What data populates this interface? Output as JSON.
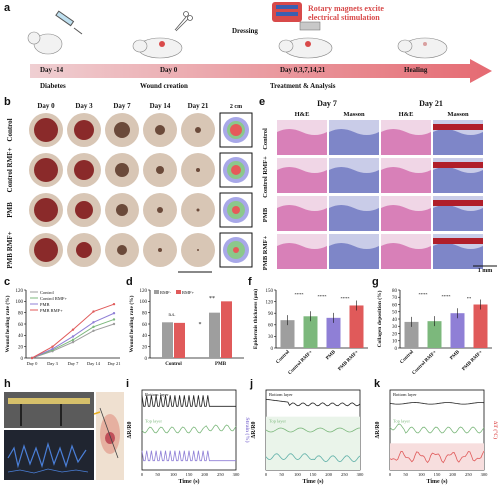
{
  "panels": {
    "a": "a",
    "b": "b",
    "c": "c",
    "d": "d",
    "e": "e",
    "f": "f",
    "g": "g",
    "h": "h",
    "i": "i",
    "j": "j",
    "k": "k"
  },
  "timeline": {
    "milestones": [
      {
        "time": "Day -14",
        "label": "Diabetes"
      },
      {
        "time": "Day 0",
        "label": "Wound creation"
      },
      {
        "time": "Day 0,3,7,14,21",
        "label": "Treatment & Analysis"
      },
      {
        "time": "Healing",
        "label": ""
      }
    ],
    "dressing_label": "Dressing",
    "rotary_label": "Rotary magnets excite",
    "rotary_label2": "electrical stimulation"
  },
  "panel_b": {
    "days": [
      "Day 0",
      "Day 3",
      "Day 7",
      "Day 14",
      "Day 21"
    ],
    "rows": [
      "Control",
      "Control RMF+",
      "PMB",
      "PMB RMF+"
    ],
    "scale_label": "2 cm"
  },
  "panel_e": {
    "groups": [
      "Day 7",
      "Day 21"
    ],
    "stains": [
      "H&E",
      "Masson",
      "H&E",
      "Masson"
    ],
    "rows": [
      "Control",
      "Control RMF+",
      "PMB",
      "PMB RMF+"
    ],
    "scale_label": "1 mm"
  },
  "chart_data": [
    {
      "id": "c",
      "type": "line",
      "ylabel": "Wound healing rate (%)",
      "categories": [
        "Day 0",
        "Day 3",
        "Day 7",
        "Day 14",
        "Day 21"
      ],
      "ylim": [
        0,
        120
      ],
      "yticks": [
        "0",
        "20",
        "40",
        "60",
        "80",
        "100",
        "120"
      ],
      "series": [
        {
          "name": "Control",
          "color": "#9e9e9e",
          "values": [
            0,
            12,
            28,
            48,
            60
          ]
        },
        {
          "name": "Control RMF+",
          "color": "#7cb87c",
          "values": [
            0,
            14,
            32,
            55,
            68
          ]
        },
        {
          "name": "PMB",
          "color": "#8f7fd6",
          "values": [
            0,
            16,
            38,
            63,
            79
          ]
        },
        {
          "name": "PMB RMF+",
          "color": "#e05a5a",
          "values": [
            0,
            20,
            50,
            82,
            95
          ]
        }
      ]
    },
    {
      "id": "d",
      "type": "bar",
      "ylabel": "Wound healing rate (%)",
      "categories": [
        "Control",
        "PMB"
      ],
      "ylim": [
        0,
        120
      ],
      "yticks": [
        "0",
        "20",
        "40",
        "60",
        "80",
        "100",
        "120"
      ],
      "series": [
        {
          "name": "RMF-",
          "color": "#9e9e9e",
          "values": [
            63,
            80
          ]
        },
        {
          "name": "RMF+",
          "color": "#e05a5a",
          "values": [
            62,
            100
          ]
        }
      ],
      "annotations": [
        "n.s.",
        "*",
        "**"
      ]
    },
    {
      "id": "f",
      "type": "bar",
      "ylabel": "Epidermis thickness (μm)",
      "categories": [
        "Control",
        "Control RMF+",
        "PMB",
        "PMB RMF+"
      ],
      "ylim": [
        0,
        150
      ],
      "yticks": [
        "0",
        "30",
        "60",
        "90",
        "120",
        "150"
      ],
      "colors": [
        "#9e9e9e",
        "#7cb87c",
        "#8f7fd6",
        "#e05a5a"
      ],
      "values": [
        72,
        82,
        78,
        110
      ],
      "annotations": [
        "****",
        "****",
        "****"
      ]
    },
    {
      "id": "g",
      "type": "bar",
      "ylabel": "Collagen deposition (%)",
      "categories": [
        "Control",
        "Control RMF+",
        "PMB",
        "PMB RMF+"
      ],
      "ylim": [
        0,
        80
      ],
      "yticks": [
        "0",
        "10",
        "20",
        "30",
        "40",
        "50",
        "60",
        "70",
        "80"
      ],
      "colors": [
        "#9e9e9e",
        "#7cb87c",
        "#8f7fd6",
        "#e05a5a"
      ],
      "values": [
        36,
        37,
        48,
        60
      ],
      "annotations": [
        "****",
        "****",
        "**"
      ]
    },
    {
      "id": "i",
      "type": "line",
      "xlabel": "Time (s)",
      "ylabel": "ΔR/R0",
      "xticks": [
        "0",
        "50",
        "100",
        "150",
        "200",
        "250",
        "300"
      ],
      "series": [
        {
          "name": "Bottom layer",
          "color": "#222222"
        },
        {
          "name": "Top layer",
          "color": "#7cb87c"
        },
        {
          "name": "",
          "color": "#8f7fd6"
        }
      ],
      "right_label": "Strain (%)"
    },
    {
      "id": "j",
      "type": "line",
      "xlabel": "Time (s)",
      "ylabel": "ΔR/R0",
      "xticks": [
        "0",
        "50",
        "100",
        "150",
        "200",
        "250",
        "300"
      ],
      "series": [
        {
          "name": "Bottom layer",
          "color": "#222222"
        },
        {
          "name": "Top layer",
          "color": "#7cb87c"
        },
        {
          "name": "",
          "color": "#5fb0a8"
        }
      ]
    },
    {
      "id": "k",
      "type": "line",
      "xlabel": "Time (s)",
      "ylabel": "ΔR/R0",
      "xticks": [
        "0",
        "50",
        "100",
        "150",
        "200",
        "250",
        "300"
      ],
      "series": [
        {
          "name": "Bottom layer",
          "color": "#222222"
        },
        {
          "name": "Top layer",
          "color": "#7cb87c"
        },
        {
          "name": "",
          "color": "#e05a5a"
        }
      ],
      "right_label": "ΔT (°C)"
    }
  ]
}
